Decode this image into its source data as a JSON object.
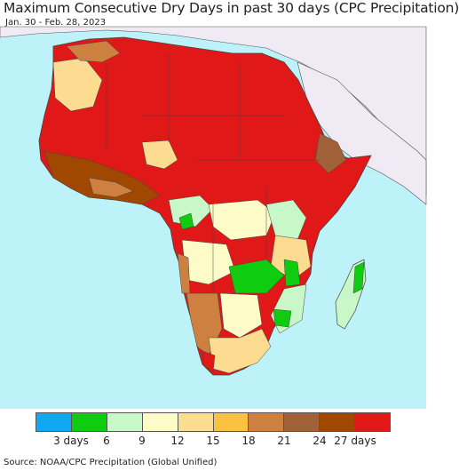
{
  "header": {
    "title": "Maximum Consecutive Dry Days in past 30 days (CPC Precipitation)",
    "date_range": "Jan. 30 - Feb. 28, 2023"
  },
  "colors": {
    "ocean": "#bdf2f8",
    "non_africa_land": "#efeaf3",
    "border": "#444444"
  },
  "legend": {
    "colors": [
      "#10a8f0",
      "#10cc10",
      "#c8f8c8",
      "#fdfcc8",
      "#fcdc90",
      "#f9c240",
      "#cd8040",
      "#a06038",
      "#a04800",
      "#e01818"
    ],
    "tick_labels": [
      "3 days",
      "6",
      "9",
      "12",
      "15",
      "18",
      "21",
      "24",
      "27 days"
    ]
  },
  "footer": {
    "source": "Source: NOAA/CPC Precipitation (Global Unified)"
  }
}
